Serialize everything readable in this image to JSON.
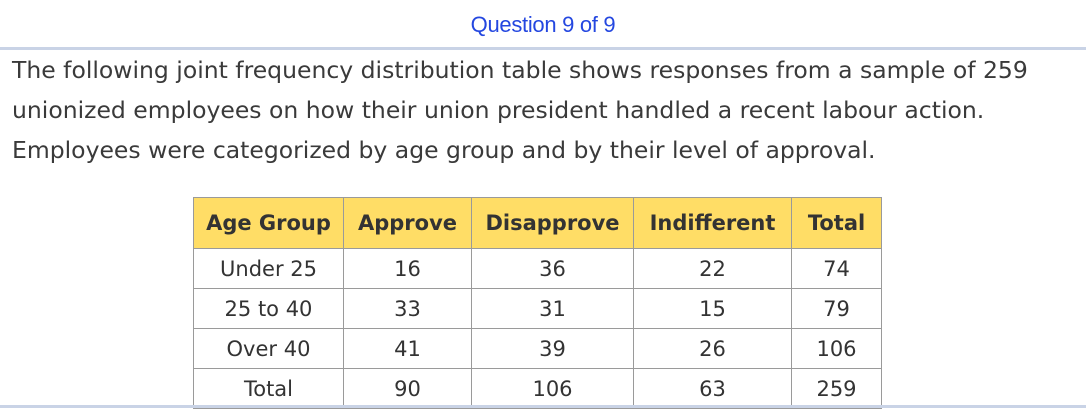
{
  "header": {
    "title": "Question 9 of 9"
  },
  "question": {
    "lines": [
      "The following joint frequency distribution table shows responses from a sample of 259",
      "unionized employees on how their union president handled a recent labour action.",
      "Employees were categorized by age group and by their level of approval."
    ]
  },
  "table": {
    "headers": [
      "Age Group",
      "Approve",
      "Disapprove",
      "Indifferent",
      "Total"
    ],
    "rows": [
      [
        "Under 25",
        "16",
        "36",
        "22",
        "74"
      ],
      [
        "25 to 40",
        "33",
        "31",
        "15",
        "79"
      ],
      [
        "Over 40",
        "41",
        "39",
        "26",
        "106"
      ],
      [
        "Total",
        "90",
        "106",
        "63",
        "259"
      ]
    ]
  },
  "colors": {
    "header_text": "#2447e0",
    "table_header_bg": "#ffdd66",
    "rule": "#c9d3e6"
  }
}
